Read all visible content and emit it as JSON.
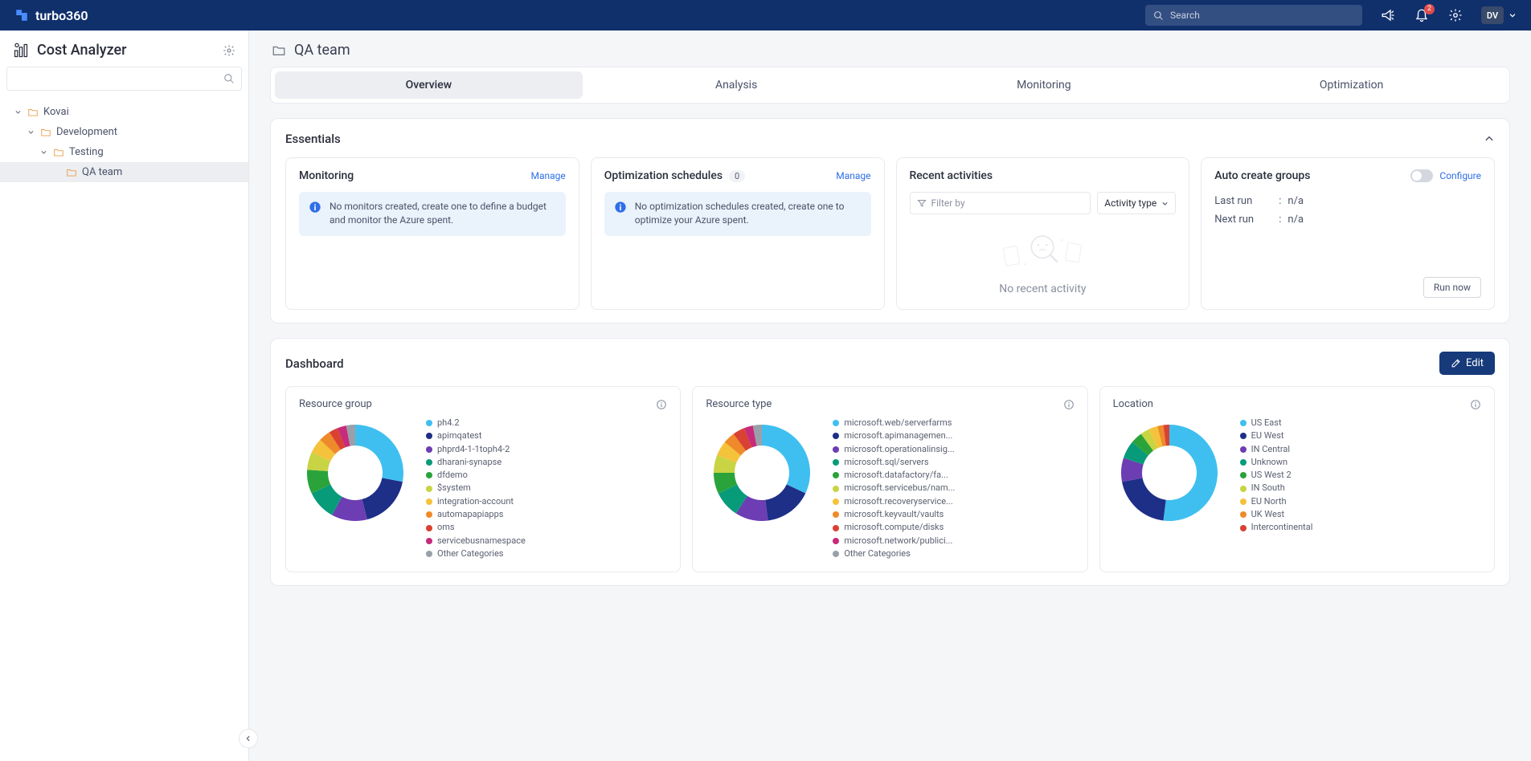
{
  "brand": "turbo360",
  "search_placeholder": "Search",
  "notification_count": "2",
  "user_initials": "DV",
  "sidebar": {
    "title": "Cost Analyzer",
    "tree": [
      {
        "label": "Kovai",
        "indent": 0,
        "expanded": true,
        "selected": false
      },
      {
        "label": "Development",
        "indent": 1,
        "expanded": true,
        "selected": false
      },
      {
        "label": "Testing",
        "indent": 2,
        "expanded": true,
        "selected": false
      },
      {
        "label": "QA team",
        "indent": 3,
        "expanded": false,
        "selected": true
      }
    ]
  },
  "breadcrumb": "QA team",
  "tabs": [
    "Overview",
    "Analysis",
    "Monitoring",
    "Optimization"
  ],
  "active_tab": 0,
  "essentials": {
    "title": "Essentials",
    "monitoring": {
      "title": "Monitoring",
      "manage": "Manage",
      "message": "No monitors created, create one to define a budget and monitor the Azure spent."
    },
    "optimization": {
      "title": "Optimization schedules",
      "count": "0",
      "manage": "Manage",
      "message": "No optimization schedules created, create one to optimize your Azure spent."
    },
    "activities": {
      "title": "Recent activities",
      "filter_placeholder": "Filter by",
      "dropdown_label": "Activity type",
      "empty": "No recent activity"
    },
    "autogroups": {
      "title": "Auto create groups",
      "configure": "Configure",
      "last_run_label": "Last run",
      "last_run_value": "n/a",
      "next_run_label": "Next run",
      "next_run_value": "n/a",
      "run_now": "Run now"
    }
  },
  "dashboard": {
    "title": "Dashboard",
    "edit": "Edit",
    "colors": [
      "#3fbff0",
      "#1e2f87",
      "#6d3db3",
      "#089b7a",
      "#2aa33a",
      "#c8d444",
      "#f5c23b",
      "#ef8a2a",
      "#d94132",
      "#c72b7a",
      "#9aa0aa"
    ],
    "charts": [
      {
        "title": "Resource group",
        "slices": [
          28,
          18,
          12,
          10,
          8,
          6,
          5,
          4,
          3,
          3,
          3
        ],
        "labels": [
          "ph4.2",
          "apimqatest",
          "phprd4-1-1toph4-2",
          "dharani-synapse",
          "dfdemo",
          "$system",
          "integration-account",
          "automapapiapps",
          "oms",
          "servicebusnamespace",
          "Other Categories"
        ]
      },
      {
        "title": "Resource type",
        "slices": [
          32,
          16,
          11,
          9,
          7,
          6,
          5,
          4,
          4,
          3,
          3
        ],
        "labels": [
          "microsoft.web/serverfarms",
          "microsoft.apimanagemen...",
          "microsoft.operationalinsig...",
          "microsoft.sql/servers",
          "microsoft.datafactory/fa...",
          "microsoft.servicebus/nam...",
          "microsoft.recoveryservice...",
          "microsoft.keyvault/vaults",
          "microsoft.compute/disks",
          "microsoft.network/publici...",
          "Other Categories"
        ]
      },
      {
        "title": "Location",
        "slices": [
          52,
          20,
          8,
          6,
          4,
          3,
          3,
          2,
          2
        ],
        "labels": [
          "US East",
          "EU West",
          "IN Central",
          "Unknown",
          "US West 2",
          "IN South",
          "EU North",
          "UK West",
          "Intercontinental"
        ]
      }
    ]
  }
}
